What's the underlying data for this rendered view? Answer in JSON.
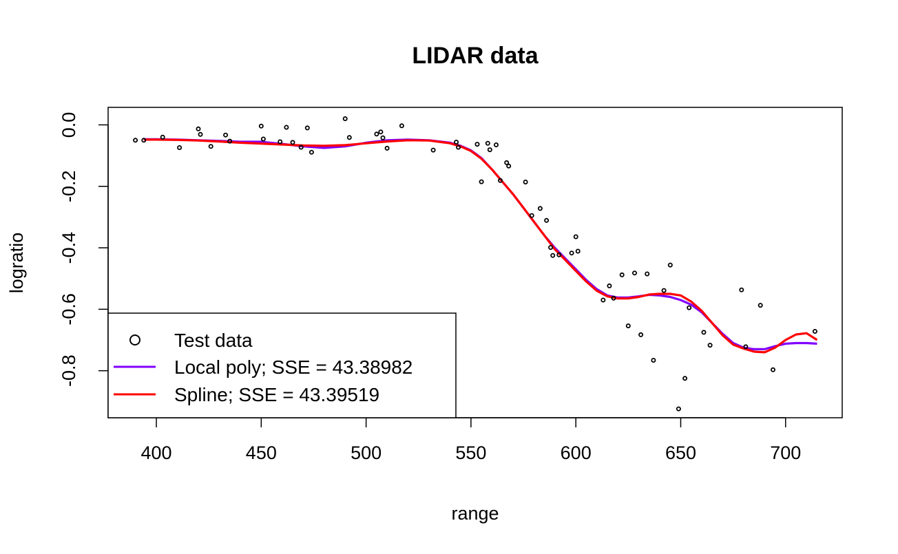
{
  "chart_data": {
    "type": "scatter",
    "title": "LIDAR data",
    "xlabel": "range",
    "ylabel": "logratio",
    "xlim": [
      377,
      727
    ],
    "ylim": [
      -0.953,
      0.057
    ],
    "xticks": [
      400,
      450,
      500,
      550,
      600,
      650,
      700
    ],
    "yticks": [
      0.0,
      -0.2,
      -0.4,
      -0.6,
      -0.8
    ],
    "xtick_labels": [
      "400",
      "450",
      "500",
      "550",
      "600",
      "650",
      "700"
    ],
    "ytick_labels": [
      "0.0",
      "-0.2",
      "-0.4",
      "-0.6",
      "-0.8"
    ],
    "grid": false,
    "legend_position": "bottom-left",
    "points": {
      "name": "Test data",
      "color": "#000000",
      "x": [
        390,
        394,
        403,
        411,
        420,
        421,
        426,
        433,
        435,
        450,
        451,
        459,
        462,
        465,
        469,
        472,
        474,
        490,
        492,
        505,
        507,
        508,
        510,
        517,
        532,
        543,
        544,
        553,
        555,
        558,
        559,
        562,
        564,
        567,
        568,
        576,
        579,
        583,
        586,
        588,
        589,
        592,
        598,
        600,
        601,
        613,
        616,
        618,
        622,
        625,
        628,
        631,
        634,
        637,
        642,
        645,
        649,
        652,
        654,
        661,
        664,
        679,
        681,
        688,
        694,
        714
      ],
      "y": [
        -0.05,
        -0.05,
        -0.04,
        -0.074,
        -0.013,
        -0.031,
        -0.07,
        -0.033,
        -0.053,
        -0.004,
        -0.046,
        -0.055,
        -0.008,
        -0.057,
        -0.073,
        -0.01,
        -0.089,
        0.02,
        -0.041,
        -0.03,
        -0.023,
        -0.042,
        -0.076,
        -0.003,
        -0.082,
        -0.056,
        -0.073,
        -0.063,
        -0.185,
        -0.06,
        -0.081,
        -0.065,
        -0.181,
        -0.123,
        -0.134,
        -0.186,
        -0.295,
        -0.272,
        -0.311,
        -0.399,
        -0.425,
        -0.423,
        -0.417,
        -0.364,
        -0.411,
        -0.57,
        -0.524,
        -0.564,
        -0.488,
        -0.654,
        -0.482,
        -0.683,
        -0.485,
        -0.766,
        -0.539,
        -0.456,
        -0.924,
        -0.825,
        -0.595,
        -0.675,
        -0.717,
        -0.537,
        -0.722,
        -0.587,
        -0.797,
        -0.672
      ]
    },
    "series": [
      {
        "name": "Local poly; SSE = 43.38982",
        "color": "#8000ff",
        "x": [
          394,
          400,
          410,
          420,
          430,
          440,
          450,
          460,
          470,
          480,
          490,
          500,
          510,
          520,
          530,
          540,
          545,
          550,
          555,
          560,
          565,
          570,
          575,
          580,
          585,
          590,
          595,
          600,
          605,
          610,
          615,
          620,
          625,
          630,
          635,
          640,
          645,
          650,
          655,
          660,
          665,
          670,
          675,
          680,
          685,
          690,
          695,
          700,
          705,
          710,
          715
        ],
        "y": [
          -0.047,
          -0.047,
          -0.048,
          -0.05,
          -0.052,
          -0.055,
          -0.055,
          -0.062,
          -0.07,
          -0.075,
          -0.07,
          -0.058,
          -0.05,
          -0.048,
          -0.05,
          -0.058,
          -0.068,
          -0.083,
          -0.108,
          -0.145,
          -0.185,
          -0.225,
          -0.27,
          -0.315,
          -0.36,
          -0.4,
          -0.435,
          -0.47,
          -0.505,
          -0.535,
          -0.555,
          -0.562,
          -0.562,
          -0.558,
          -0.553,
          -0.555,
          -0.56,
          -0.57,
          -0.585,
          -0.61,
          -0.645,
          -0.68,
          -0.71,
          -0.725,
          -0.73,
          -0.73,
          -0.72,
          -0.712,
          -0.71,
          -0.71,
          -0.712
        ]
      },
      {
        "name": "Spline; SSE = 43.39519",
        "color": "#ff0000",
        "x": [
          394,
          400,
          410,
          420,
          430,
          440,
          450,
          460,
          470,
          480,
          490,
          500,
          510,
          520,
          530,
          540,
          545,
          550,
          555,
          560,
          565,
          570,
          575,
          580,
          585,
          590,
          595,
          600,
          605,
          610,
          615,
          620,
          625,
          630,
          635,
          640,
          645,
          650,
          655,
          660,
          665,
          670,
          675,
          680,
          685,
          690,
          695,
          700,
          705,
          710,
          715
        ],
        "y": [
          -0.048,
          -0.048,
          -0.049,
          -0.051,
          -0.054,
          -0.058,
          -0.061,
          -0.064,
          -0.067,
          -0.068,
          -0.066,
          -0.06,
          -0.054,
          -0.05,
          -0.051,
          -0.06,
          -0.07,
          -0.085,
          -0.11,
          -0.145,
          -0.185,
          -0.225,
          -0.27,
          -0.315,
          -0.36,
          -0.405,
          -0.44,
          -0.475,
          -0.51,
          -0.54,
          -0.558,
          -0.565,
          -0.565,
          -0.56,
          -0.552,
          -0.55,
          -0.55,
          -0.555,
          -0.575,
          -0.605,
          -0.645,
          -0.685,
          -0.715,
          -0.728,
          -0.738,
          -0.74,
          -0.725,
          -0.7,
          -0.682,
          -0.678,
          -0.7
        ]
      }
    ],
    "legend": [
      {
        "label": "Test data",
        "kind": "point",
        "color": "#000000"
      },
      {
        "label": "Local poly; SSE = 43.38982",
        "kind": "line",
        "color": "#8000ff"
      },
      {
        "label": "Spline; SSE = 43.39519",
        "kind": "line",
        "color": "#ff0000"
      }
    ]
  }
}
